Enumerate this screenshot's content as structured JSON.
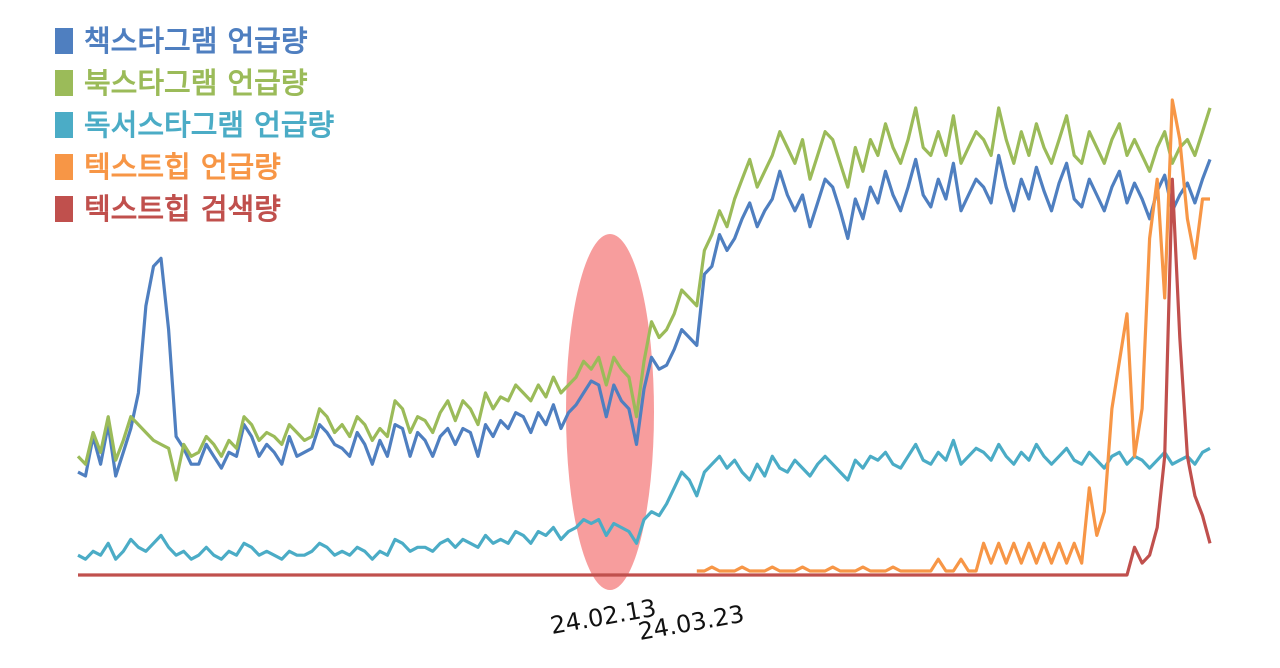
{
  "chart_data": {
    "type": "line",
    "title": "",
    "xlabel": "",
    "ylabel": "",
    "grid": false,
    "legend_position": "top-left",
    "x_tick_labels": [
      "24.02.13",
      "24.03.23"
    ],
    "highlight": {
      "shape": "ellipse",
      "around": "24.02.13",
      "color": "#f47c7c"
    },
    "series": [
      {
        "name": "책스타그램 언급량",
        "color": "#4f7fc0",
        "values": [
          26,
          25,
          35,
          28,
          38,
          25,
          31,
          37,
          46,
          68,
          78,
          80,
          62,
          35,
          32,
          28,
          28,
          33,
          30,
          27,
          31,
          30,
          38,
          35,
          30,
          33,
          31,
          28,
          35,
          30,
          31,
          32,
          38,
          36,
          33,
          32,
          30,
          36,
          33,
          28,
          34,
          30,
          38,
          37,
          30,
          36,
          34,
          30,
          35,
          37,
          33,
          37,
          36,
          30,
          38,
          35,
          39,
          37,
          41,
          40,
          36,
          41,
          38,
          43,
          37,
          41,
          43,
          46,
          49,
          48,
          40,
          48,
          44,
          42,
          33,
          47,
          55,
          52,
          53,
          57,
          62,
          60,
          58,
          76,
          78,
          86,
          82,
          85,
          90,
          94,
          88,
          92,
          95,
          102,
          96,
          92,
          96,
          88,
          94,
          100,
          98,
          92,
          85,
          95,
          90,
          98,
          94,
          102,
          96,
          92,
          98,
          105,
          96,
          93,
          100,
          95,
          104,
          92,
          96,
          100,
          98,
          94,
          106,
          98,
          92,
          100,
          95,
          103,
          97,
          92,
          99,
          104,
          95,
          93,
          100,
          96,
          92,
          98,
          102,
          94,
          99,
          95,
          90,
          97,
          101,
          92,
          96,
          99,
          94,
          100,
          105
        ]
      },
      {
        "name": "북스타그램 언급량",
        "color": "#9bbb59",
        "values": [
          30,
          28,
          36,
          31,
          40,
          29,
          34,
          40,
          38,
          36,
          34,
          33,
          32,
          24,
          33,
          30,
          31,
          35,
          33,
          30,
          34,
          32,
          40,
          38,
          34,
          36,
          35,
          33,
          38,
          36,
          34,
          35,
          42,
          40,
          36,
          38,
          35,
          40,
          38,
          34,
          37,
          35,
          44,
          42,
          36,
          40,
          39,
          36,
          41,
          44,
          39,
          44,
          42,
          38,
          46,
          42,
          45,
          44,
          48,
          46,
          44,
          48,
          45,
          50,
          46,
          48,
          50,
          54,
          52,
          55,
          48,
          55,
          52,
          50,
          40,
          54,
          64,
          60,
          62,
          66,
          72,
          70,
          68,
          82,
          86,
          92,
          88,
          95,
          100,
          105,
          98,
          102,
          106,
          112,
          108,
          104,
          110,
          100,
          106,
          112,
          110,
          104,
          98,
          108,
          102,
          110,
          106,
          114,
          108,
          104,
          110,
          118,
          108,
          106,
          112,
          106,
          116,
          104,
          108,
          112,
          110,
          106,
          118,
          110,
          104,
          112,
          106,
          114,
          108,
          104,
          110,
          116,
          106,
          104,
          112,
          108,
          104,
          110,
          114,
          106,
          110,
          106,
          102,
          108,
          112,
          104,
          108,
          110,
          106,
          112,
          118
        ]
      },
      {
        "name": "독서스타그램 언급량",
        "color": "#4bacc6",
        "values": [
          5,
          4,
          6,
          5,
          8,
          4,
          6,
          9,
          7,
          6,
          8,
          10,
          7,
          5,
          6,
          4,
          5,
          7,
          5,
          4,
          6,
          5,
          8,
          7,
          5,
          6,
          5,
          4,
          6,
          5,
          5,
          6,
          8,
          7,
          5,
          6,
          5,
          7,
          6,
          4,
          6,
          5,
          9,
          8,
          6,
          7,
          7,
          6,
          8,
          9,
          7,
          9,
          8,
          7,
          10,
          8,
          9,
          8,
          11,
          10,
          8,
          11,
          10,
          12,
          9,
          11,
          12,
          14,
          13,
          14,
          10,
          13,
          12,
          11,
          8,
          14,
          16,
          15,
          18,
          22,
          26,
          24,
          20,
          26,
          28,
          30,
          27,
          29,
          26,
          24,
          28,
          25,
          30,
          27,
          26,
          29,
          27,
          25,
          28,
          30,
          28,
          26,
          24,
          29,
          27,
          30,
          29,
          31,
          28,
          27,
          30,
          33,
          29,
          28,
          31,
          29,
          34,
          28,
          30,
          32,
          31,
          29,
          33,
          30,
          28,
          31,
          29,
          33,
          30,
          28,
          30,
          32,
          29,
          28,
          31,
          29,
          27,
          30,
          31,
          28,
          30,
          29,
          27,
          29,
          31,
          28,
          29,
          30,
          28,
          31,
          32
        ]
      },
      {
        "name": "텍스트힙 언급량",
        "color": "#f79646",
        "values": [
          null,
          null,
          null,
          null,
          null,
          null,
          null,
          null,
          null,
          null,
          null,
          null,
          null,
          null,
          null,
          null,
          null,
          null,
          null,
          null,
          null,
          null,
          null,
          null,
          null,
          null,
          null,
          null,
          null,
          null,
          null,
          null,
          null,
          null,
          null,
          null,
          null,
          null,
          null,
          null,
          null,
          null,
          null,
          null,
          null,
          null,
          null,
          null,
          null,
          null,
          null,
          null,
          null,
          null,
          null,
          null,
          null,
          null,
          null,
          null,
          null,
          null,
          null,
          null,
          null,
          null,
          null,
          null,
          null,
          null,
          null,
          null,
          null,
          null,
          null,
          null,
          null,
          null,
          null,
          null,
          null,
          null,
          null,
          null,
          null,
          null,
          null,
          null,
          null,
          null,
          null,
          null,
          null,
          null,
          null,
          null,
          null,
          null,
          null,
          null,
          null,
          null,
          null,
          null,
          null,
          null,
          null,
          null,
          null,
          null,
          null,
          null,
          null,
          null,
          null,
          null,
          null,
          null,
          null,
          null,
          null,
          null,
          null,
          null,
          null,
          null,
          null,
          null,
          null,
          null,
          null,
          null,
          null,
          null,
          null,
          null,
          null,
          null,
          null,
          null,
          null,
          null,
          null,
          null,
          null,
          null,
          null,
          null,
          null,
          null,
          null
        ]
      },
      {
        "name": "텍스트힙 검색량",
        "color": "#c0504d",
        "values": [
          null,
          null,
          null,
          null,
          null,
          null,
          null,
          null,
          null,
          null,
          null,
          null,
          null,
          null,
          null,
          null,
          null,
          null,
          null,
          null,
          null,
          null,
          null,
          null,
          null,
          null,
          null,
          null,
          null,
          null,
          null,
          null,
          null,
          null,
          null,
          null,
          null,
          null,
          null,
          null,
          null,
          null,
          null,
          null,
          null,
          null,
          null,
          null,
          null,
          null,
          null,
          null,
          null,
          null,
          null,
          null,
          null,
          null,
          null,
          null,
          null,
          null,
          null,
          null,
          null,
          null,
          null,
          null,
          null,
          null,
          null,
          null,
          null,
          null,
          null,
          null,
          null,
          null,
          null,
          null,
          null,
          null,
          null,
          null,
          null,
          null,
          null,
          null,
          null,
          null,
          null,
          null,
          null,
          null,
          null,
          null,
          null,
          null,
          null,
          null,
          null,
          null,
          null,
          null,
          null,
          null,
          null,
          null,
          null,
          null,
          null,
          null,
          null,
          null,
          null,
          null,
          null,
          null,
          null,
          null,
          null,
          null,
          null,
          null,
          null,
          null,
          null,
          null,
          null,
          null,
          null,
          null,
          null,
          null,
          null,
          null,
          null,
          null,
          null,
          null,
          null,
          null,
          null,
          null,
          null,
          null,
          null,
          null,
          null,
          null,
          null
        ]
      }
    ]
  }
}
